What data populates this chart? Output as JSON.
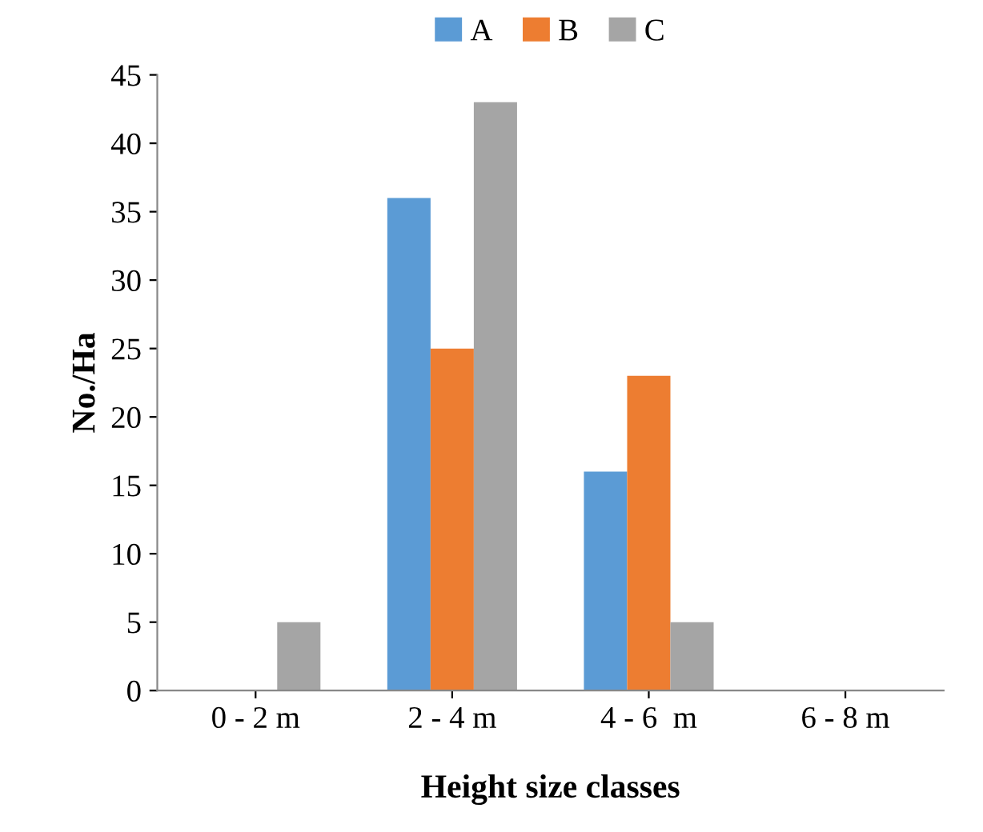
{
  "chart_data": {
    "type": "bar",
    "xlabel": "Height size classes",
    "ylabel": "No./Ha",
    "categories": [
      "0 - 2 m",
      "2 - 4 m",
      "4 - 6  m",
      "6 - 8 m"
    ],
    "series": [
      {
        "name": "A",
        "color": "#5b9bd5",
        "values": [
          0,
          36,
          16,
          0
        ]
      },
      {
        "name": "B",
        "color": "#ed7d31",
        "values": [
          0,
          25,
          23,
          0
        ]
      },
      {
        "name": "C",
        "color": "#a5a5a5",
        "values": [
          5,
          43,
          5,
          0
        ]
      }
    ],
    "ylim": [
      0,
      45
    ],
    "yticks": [
      0,
      5,
      10,
      15,
      20,
      25,
      30,
      35,
      40,
      45
    ],
    "grid": false,
    "legend": "top"
  }
}
